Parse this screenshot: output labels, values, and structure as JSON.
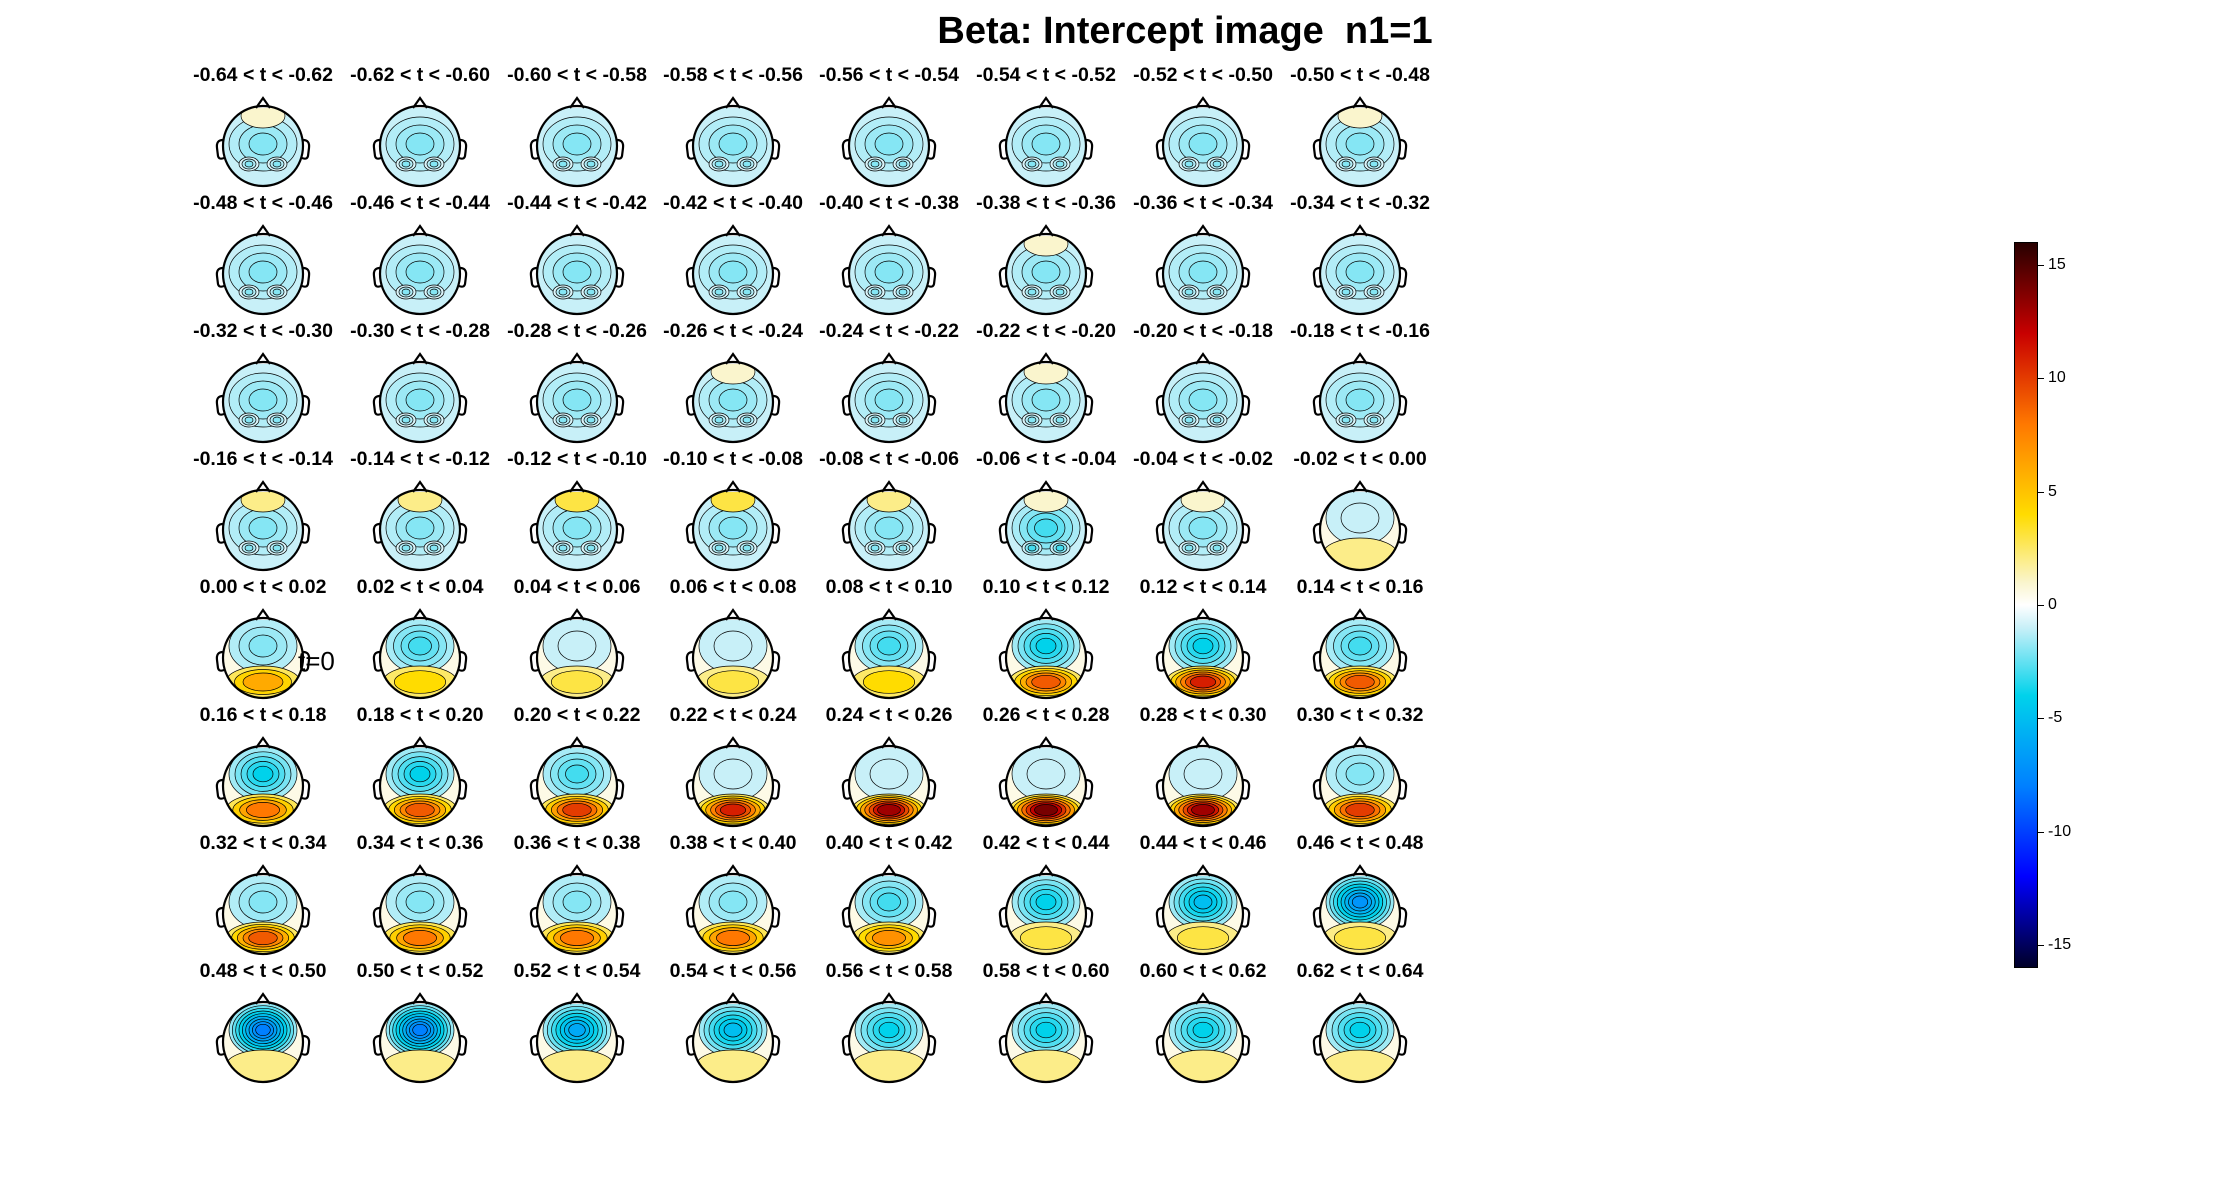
{
  "chart_data": {
    "type": "heatmap",
    "title": "Beta: Intercept image  n1=1",
    "layout": {
      "rows": 8,
      "cols": 8
    },
    "t0_label": "t=0",
    "panels": [
      {
        "label": "-0.64 < t < -0.62",
        "pos": -1,
        "neg": -2,
        "front": 1
      },
      {
        "label": "-0.62 < t < -0.60",
        "pos": -1,
        "neg": -2,
        "front": 0
      },
      {
        "label": "-0.60 < t < -0.58",
        "pos": -1,
        "neg": -2,
        "front": 0
      },
      {
        "label": "-0.58 < t < -0.56",
        "pos": -1,
        "neg": -2,
        "front": 0
      },
      {
        "label": "-0.56 < t < -0.54",
        "pos": -1,
        "neg": -2,
        "front": 0
      },
      {
        "label": "-0.54 < t < -0.52",
        "pos": -1,
        "neg": -2,
        "front": 0
      },
      {
        "label": "-0.52 < t < -0.50",
        "pos": -1,
        "neg": -2,
        "front": 0
      },
      {
        "label": "-0.50 < t < -0.48",
        "pos": -1,
        "neg": -2,
        "front": 1
      },
      {
        "label": "-0.48 < t < -0.46",
        "pos": -1,
        "neg": -2,
        "front": 0
      },
      {
        "label": "-0.46 < t < -0.44",
        "pos": -1,
        "neg": -2,
        "front": 0
      },
      {
        "label": "-0.44 < t < -0.42",
        "pos": -1,
        "neg": -2,
        "front": 0
      },
      {
        "label": "-0.42 < t < -0.40",
        "pos": -1,
        "neg": -2,
        "front": 0
      },
      {
        "label": "-0.40 < t < -0.38",
        "pos": -1,
        "neg": -2,
        "front": 0
      },
      {
        "label": "-0.38 < t < -0.36",
        "pos": -1,
        "neg": -2,
        "front": 1
      },
      {
        "label": "-0.36 < t < -0.34",
        "pos": -1,
        "neg": -2,
        "front": 0
      },
      {
        "label": "-0.34 < t < -0.32",
        "pos": -1,
        "neg": -2,
        "front": 0
      },
      {
        "label": "-0.32 < t < -0.30",
        "pos": -1,
        "neg": -2,
        "front": 0
      },
      {
        "label": "-0.30 < t < -0.28",
        "pos": -1,
        "neg": -2,
        "front": 0
      },
      {
        "label": "-0.28 < t < -0.26",
        "pos": -1,
        "neg": -2,
        "front": 0
      },
      {
        "label": "-0.26 < t < -0.24",
        "pos": -1,
        "neg": -2,
        "front": 1
      },
      {
        "label": "-0.24 < t < -0.22",
        "pos": -1,
        "neg": -2,
        "front": 0
      },
      {
        "label": "-0.22 < t < -0.20",
        "pos": -1,
        "neg": -2,
        "front": 1
      },
      {
        "label": "-0.20 < t < -0.18",
        "pos": -1,
        "neg": -2,
        "front": 0
      },
      {
        "label": "-0.18 < t < -0.16",
        "pos": -1,
        "neg": -2,
        "front": 0
      },
      {
        "label": "-0.16 < t < -0.14",
        "pos": -1,
        "neg": -2,
        "front": 2
      },
      {
        "label": "-0.14 < t < -0.12",
        "pos": -1,
        "neg": -2,
        "front": 2
      },
      {
        "label": "-0.12 < t < -0.10",
        "pos": -1,
        "neg": -2,
        "front": 3
      },
      {
        "label": "-0.10 < t < -0.08",
        "pos": -1,
        "neg": -2,
        "front": 3
      },
      {
        "label": "-0.08 < t < -0.06",
        "pos": -1,
        "neg": -2,
        "front": 2
      },
      {
        "label": "-0.06 < t < -0.04",
        "pos": -1,
        "neg": -3,
        "front": 1
      },
      {
        "label": "-0.04 < t < -0.02",
        "pos": -1,
        "neg": -2,
        "front": 1
      },
      {
        "label": "-0.02 < t < 0.00",
        "pos": 2,
        "neg": -1,
        "front": 0
      },
      {
        "label": "0.00 < t < 0.02",
        "pos": 6,
        "neg": -2,
        "front": 0
      },
      {
        "label": "0.02 < t < 0.04",
        "pos": 4,
        "neg": -3,
        "front": 0
      },
      {
        "label": "0.04 < t < 0.06",
        "pos": 3,
        "neg": -1,
        "front": 0
      },
      {
        "label": "0.06 < t < 0.08",
        "pos": 3,
        "neg": -1,
        "front": 0
      },
      {
        "label": "0.08 < t < 0.10",
        "pos": 4,
        "neg": -3,
        "front": 0
      },
      {
        "label": "0.10 < t < 0.12",
        "pos": 9,
        "neg": -4,
        "front": 0
      },
      {
        "label": "0.12 < t < 0.14",
        "pos": 11,
        "neg": -4,
        "front": 0
      },
      {
        "label": "0.14 < t < 0.16",
        "pos": 9,
        "neg": -3,
        "front": 0
      },
      {
        "label": "0.16 < t < 0.18",
        "pos": 8,
        "neg": -4,
        "front": 0
      },
      {
        "label": "0.18 < t < 0.20",
        "pos": 9,
        "neg": -4,
        "front": 0
      },
      {
        "label": "0.20 < t < 0.22",
        "pos": 10,
        "neg": -3,
        "front": 0
      },
      {
        "label": "0.22 < t < 0.24",
        "pos": 11,
        "neg": -1,
        "front": 0
      },
      {
        "label": "0.24 < t < 0.26",
        "pos": 13,
        "neg": -1,
        "front": 0
      },
      {
        "label": "0.26 < t < 0.28",
        "pos": 14,
        "neg": -1,
        "front": 0
      },
      {
        "label": "0.28 < t < 0.30",
        "pos": 13,
        "neg": -1,
        "front": 0
      },
      {
        "label": "0.30 < t < 0.32",
        "pos": 10,
        "neg": -2,
        "front": 0
      },
      {
        "label": "0.32 < t < 0.34",
        "pos": 9,
        "neg": -2,
        "front": 0
      },
      {
        "label": "0.34 < t < 0.36",
        "pos": 8,
        "neg": -2,
        "front": 0
      },
      {
        "label": "0.36 < t < 0.38",
        "pos": 8,
        "neg": -2,
        "front": 0
      },
      {
        "label": "0.38 < t < 0.40",
        "pos": 8,
        "neg": -2,
        "front": 0
      },
      {
        "label": "0.40 < t < 0.42",
        "pos": 7,
        "neg": -3,
        "front": 0
      },
      {
        "label": "0.42 < t < 0.44",
        "pos": 3,
        "neg": -4,
        "front": 0
      },
      {
        "label": "0.44 < t < 0.46",
        "pos": 3,
        "neg": -5,
        "front": 0
      },
      {
        "label": "0.46 < t < 0.48",
        "pos": 3,
        "neg": -7,
        "front": 0
      },
      {
        "label": "0.48 < t < 0.50",
        "pos": 2,
        "neg": -8,
        "front": 0
      },
      {
        "label": "0.50 < t < 0.52",
        "pos": 2,
        "neg": -8,
        "front": 0
      },
      {
        "label": "0.52 < t < 0.54",
        "pos": 2,
        "neg": -6,
        "front": 0
      },
      {
        "label": "0.54 < t < 0.56",
        "pos": 2,
        "neg": -5,
        "front": 0
      },
      {
        "label": "0.56 < t < 0.58",
        "pos": 2,
        "neg": -4,
        "front": 0
      },
      {
        "label": "0.58 < t < 0.60",
        "pos": 2,
        "neg": -4,
        "front": 0
      },
      {
        "label": "0.60 < t < 0.62",
        "pos": 2,
        "neg": -4,
        "front": 0
      },
      {
        "label": "0.62 < t < 0.64",
        "pos": 2,
        "neg": -4,
        "front": 0
      }
    ],
    "colorbar": {
      "range": [
        -16,
        16
      ],
      "ticks": [
        15,
        10,
        5,
        0,
        -5,
        -10,
        -15
      ],
      "tick_labels": [
        "15",
        "10",
        "5",
        "0",
        "-5",
        "-10",
        "-15"
      ],
      "colormap": "jet-white-center"
    },
    "grid": false,
    "legend": "colorbar-right"
  }
}
